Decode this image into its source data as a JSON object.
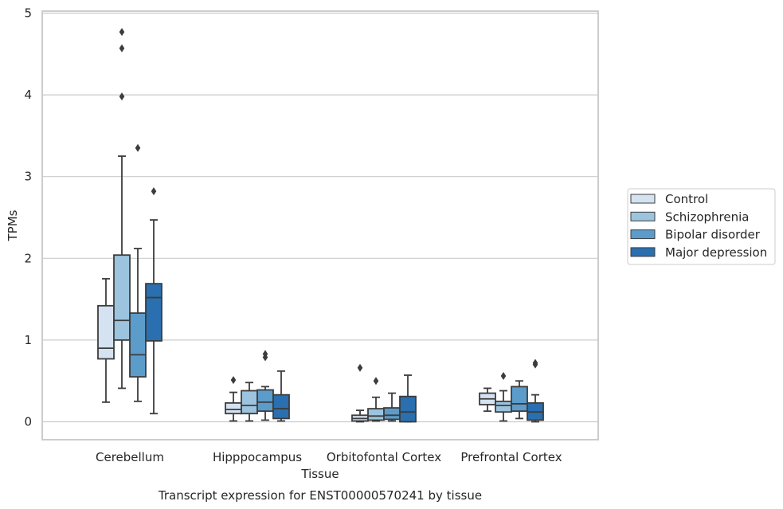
{
  "chart_data": {
    "type": "box",
    "title": "Transcript expression for ENST00000570241 by tissue",
    "xlabel": "Tissue",
    "ylabel": "TPMs",
    "ylim": [
      -0.22,
      5.02
    ],
    "yticks": [
      0,
      1,
      2,
      3,
      4,
      5
    ],
    "ytick_labels": [
      "0",
      "1",
      "2",
      "3",
      "4",
      "5"
    ],
    "grid": "horizontal",
    "legend_position": "right",
    "categories": [
      "Cerebellum",
      "Hipppocampus",
      "Orbitofontal Cortex",
      "Prefrontal Cortex"
    ],
    "series": [
      {
        "name": "Control",
        "color": "#d4e2f1",
        "boxes": [
          {
            "low": 0.24,
            "q1": 0.77,
            "median": 0.9,
            "q3": 1.42,
            "high": 1.75,
            "outliers": []
          },
          {
            "low": 0.01,
            "q1": 0.1,
            "median": 0.15,
            "q3": 0.23,
            "high": 0.36,
            "outliers": [
              0.51
            ]
          },
          {
            "low": 0.0,
            "q1": 0.01,
            "median": 0.04,
            "q3": 0.08,
            "high": 0.14,
            "outliers": [
              0.66
            ]
          },
          {
            "low": 0.13,
            "q1": 0.21,
            "median": 0.28,
            "q3": 0.35,
            "high": 0.41,
            "outliers": []
          }
        ]
      },
      {
        "name": "Schizophrenia",
        "color": "#9cc4de",
        "boxes": [
          {
            "low": 0.41,
            "q1": 1.0,
            "median": 1.24,
            "q3": 2.04,
            "high": 3.25,
            "outliers": [
              3.98,
              4.57,
              4.77
            ]
          },
          {
            "low": 0.01,
            "q1": 0.1,
            "median": 0.2,
            "q3": 0.38,
            "high": 0.48,
            "outliers": []
          },
          {
            "low": 0.01,
            "q1": 0.02,
            "median": 0.07,
            "q3": 0.16,
            "high": 0.3,
            "outliers": [
              0.5
            ]
          },
          {
            "low": 0.01,
            "q1": 0.12,
            "median": 0.2,
            "q3": 0.25,
            "high": 0.38,
            "outliers": [
              0.56
            ]
          }
        ]
      },
      {
        "name": "Bipolar disorder",
        "color": "#5b9ccb",
        "boxes": [
          {
            "low": 0.25,
            "q1": 0.55,
            "median": 0.82,
            "q3": 1.33,
            "high": 2.12,
            "outliers": [
              3.35
            ]
          },
          {
            "low": 0.02,
            "q1": 0.13,
            "median": 0.24,
            "q3": 0.39,
            "high": 0.43,
            "outliers": [
              0.79,
              0.83
            ]
          },
          {
            "low": 0.01,
            "q1": 0.03,
            "median": 0.08,
            "q3": 0.17,
            "high": 0.35,
            "outliers": []
          },
          {
            "low": 0.04,
            "q1": 0.13,
            "median": 0.22,
            "q3": 0.43,
            "high": 0.5,
            "outliers": []
          }
        ]
      },
      {
        "name": "Major depression",
        "color": "#2a6fb0",
        "boxes": [
          {
            "low": 0.1,
            "q1": 0.99,
            "median": 1.52,
            "q3": 1.69,
            "high": 2.47,
            "outliers": [
              2.82
            ]
          },
          {
            "low": 0.01,
            "q1": 0.04,
            "median": 0.16,
            "q3": 0.33,
            "high": 0.62,
            "outliers": []
          },
          {
            "low": 0.0,
            "q1": 0.0,
            "median": 0.12,
            "q3": 0.31,
            "high": 0.57,
            "outliers": []
          },
          {
            "low": 0.0,
            "q1": 0.02,
            "median": 0.12,
            "q3": 0.23,
            "high": 0.33,
            "outliers": [
              0.7,
              0.72
            ]
          }
        ]
      }
    ]
  }
}
